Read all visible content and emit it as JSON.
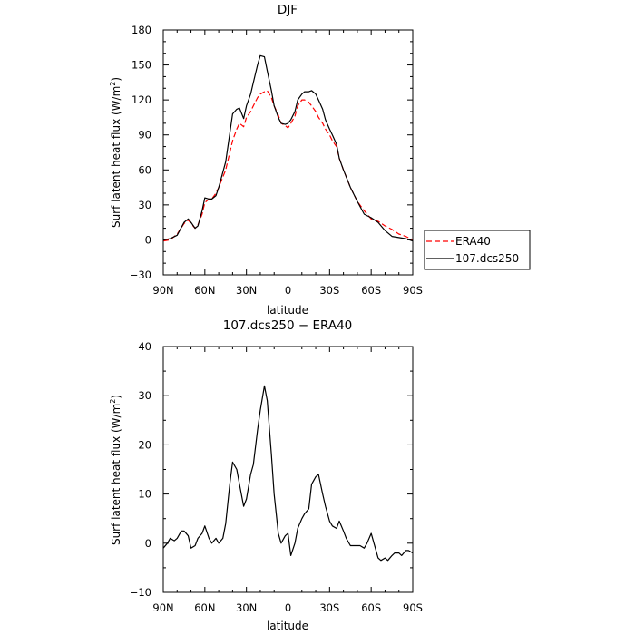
{
  "chart_data": [
    {
      "type": "line",
      "title": "DJF",
      "xlabel": "latitude",
      "ylabel": "Surf latent heat flux (W/m²)",
      "xlim": [
        90,
        -90
      ],
      "ylim": [
        -30,
        180
      ],
      "x_ticks": [
        90,
        60,
        30,
        0,
        -30,
        -60,
        -90
      ],
      "x_tick_labels": [
        "90N",
        "60N",
        "30N",
        "0",
        "30S",
        "60S",
        "90S"
      ],
      "y_ticks": [
        -30,
        0,
        30,
        60,
        90,
        120,
        150,
        180
      ],
      "y_tick_labels": [
        "−30",
        "0",
        "30",
        "60",
        "90",
        "120",
        "150",
        "180"
      ],
      "legend_position": "right",
      "series": [
        {
          "name": "ERA40",
          "color": "#ff0000",
          "dash": "dashed",
          "x": [
            90,
            85,
            80,
            75,
            72,
            70,
            67,
            65,
            62,
            60,
            57,
            55,
            52,
            50,
            45,
            40,
            37,
            35,
            32,
            30,
            27,
            25,
            22,
            20,
            17,
            15,
            12,
            10,
            7,
            5,
            2,
            0,
            -2,
            -5,
            -7,
            -10,
            -12,
            -15,
            -17,
            -20,
            -22,
            -25,
            -27,
            -30,
            -32,
            -35,
            -37,
            -40,
            -45,
            -50,
            -55,
            -60,
            -65,
            -70,
            -75,
            -80,
            -85,
            -90
          ],
          "y": [
            -1,
            0,
            5,
            14,
            17,
            14,
            10,
            13,
            22,
            32,
            35,
            35,
            40,
            45,
            60,
            85,
            95,
            100,
            97,
            105,
            110,
            115,
            122,
            125,
            127,
            128,
            122,
            115,
            107,
            100,
            98,
            96,
            100,
            106,
            115,
            120,
            120,
            118,
            115,
            110,
            105,
            100,
            95,
            90,
            85,
            80,
            70,
            60,
            45,
            33,
            25,
            18,
            16,
            12,
            9,
            5,
            3,
            0
          ]
        },
        {
          "name": "107.dcs250",
          "color": "#000000",
          "dash": "solid",
          "x": [
            90,
            85,
            80,
            75,
            72,
            70,
            67,
            65,
            62,
            60,
            57,
            55,
            52,
            50,
            45,
            40,
            37,
            35,
            32,
            30,
            27,
            25,
            22,
            20,
            17,
            15,
            12,
            10,
            7,
            5,
            2,
            0,
            -2,
            -5,
            -7,
            -10,
            -12,
            -15,
            -17,
            -20,
            -22,
            -25,
            -27,
            -30,
            -32,
            -35,
            -37,
            -40,
            -45,
            -50,
            -55,
            -60,
            -65,
            -70,
            -75,
            -80,
            -85,
            -90
          ],
          "y": [
            0,
            1,
            4,
            15,
            18,
            15,
            10,
            12,
            25,
            36,
            35,
            35,
            38,
            45,
            67,
            108,
            112,
            113,
            104,
            115,
            125,
            135,
            150,
            158,
            157,
            145,
            128,
            115,
            105,
            100,
            99,
            100,
            103,
            110,
            120,
            125,
            127,
            127,
            128,
            125,
            120,
            112,
            103,
            95,
            90,
            82,
            70,
            60,
            45,
            33,
            22,
            19,
            15,
            8,
            3,
            2,
            1,
            -1
          ]
        }
      ]
    },
    {
      "type": "line",
      "title": "107.dcs250 − ERA40",
      "xlabel": "latitude",
      "ylabel": "Surf latent heat flux (W/m²)",
      "xlim": [
        90,
        -90
      ],
      "ylim": [
        -10,
        40
      ],
      "x_ticks": [
        90,
        60,
        30,
        0,
        -30,
        -60,
        -90
      ],
      "x_tick_labels": [
        "90N",
        "60N",
        "30N",
        "0",
        "30S",
        "60S",
        "90S"
      ],
      "y_ticks": [
        -10,
        0,
        10,
        20,
        30,
        40
      ],
      "y_tick_labels": [
        "−10",
        "0",
        "10",
        "20",
        "30",
        "40"
      ],
      "series": [
        {
          "color": "#000000",
          "dash": "solid",
          "x": [
            90,
            87,
            85,
            82,
            80,
            77,
            75,
            72,
            70,
            67,
            65,
            62,
            60,
            57,
            55,
            52,
            50,
            47,
            45,
            42,
            40,
            37,
            35,
            32,
            30,
            27,
            25,
            22,
            20,
            17,
            15,
            12,
            10,
            7,
            5,
            2,
            0,
            -2,
            -5,
            -7,
            -10,
            -12,
            -15,
            -17,
            -20,
            -22,
            -25,
            -27,
            -30,
            -32,
            -35,
            -37,
            -40,
            -42,
            -45,
            -47,
            -50,
            -52,
            -55,
            -57,
            -60,
            -62,
            -65,
            -67,
            -70,
            -72,
            -75,
            -77,
            -80,
            -82,
            -85,
            -87,
            -90
          ],
          "y": [
            -1,
            0,
            1,
            0.5,
            1,
            2.5,
            2.5,
            1.5,
            -1,
            -0.5,
            1,
            2,
            3.5,
            1,
            0,
            1,
            0,
            1,
            4,
            12,
            16.5,
            15,
            12,
            7.5,
            9,
            14,
            16,
            23,
            27,
            32,
            29,
            18,
            10,
            2,
            0,
            1.5,
            2,
            -2.5,
            0,
            3,
            5,
            6,
            7,
            12,
            13.5,
            14,
            10,
            7.5,
            4.5,
            3.5,
            3,
            4.5,
            2.5,
            1,
            -0.5,
            -0.5,
            -0.5,
            -0.5,
            -1,
            0,
            2,
            0,
            -3,
            -3.5,
            -3,
            -3.5,
            -2.5,
            -2,
            -2,
            -2.5,
            -1.5,
            -1.5,
            -2
          ]
        }
      ]
    }
  ]
}
